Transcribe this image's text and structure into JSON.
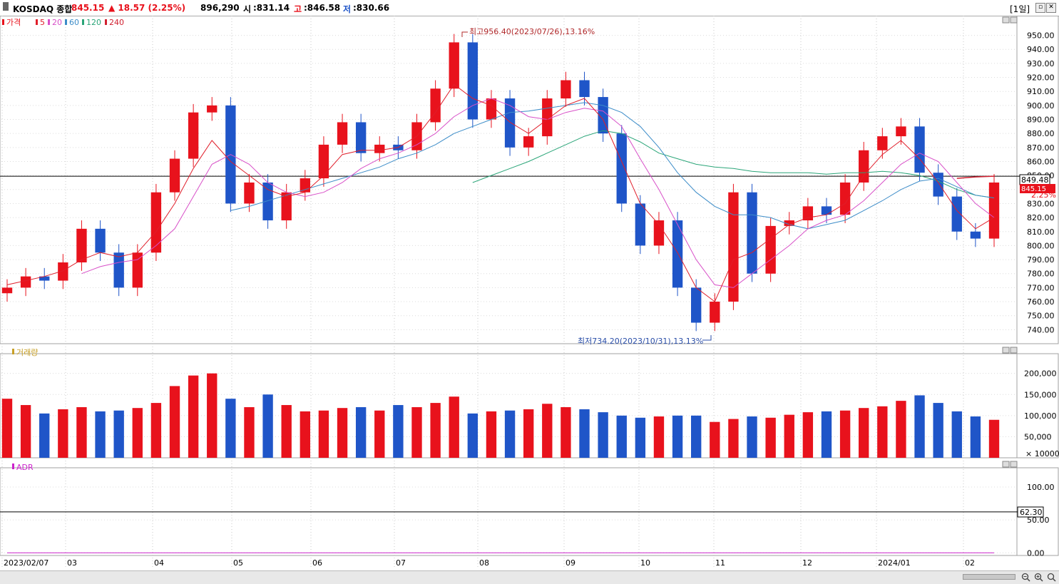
{
  "header": {
    "name": "KOSDAQ 종합",
    "price": "845.15",
    "change": "▲ 18.57 (2.25%)",
    "volume": "896,290",
    "open_label": "시",
    "open": ":831.14",
    "high_label": "고",
    "high": ":846.58",
    "low_label": "저",
    "low": ":830.66",
    "period": "[1일]"
  },
  "colors": {
    "up": "#e8121c",
    "down": "#1f55c8",
    "ma5": "#e01e2a",
    "ma20": "#d850c8",
    "ma60": "#3c8cc8",
    "ma120": "#2aa578",
    "ma240": "#d02030",
    "adr": "#cc22cc",
    "grid": "#dcdcdc"
  },
  "legend_price": [
    "가격",
    "5",
    "20",
    "60",
    "120",
    "240"
  ],
  "legend_volume": "거래량",
  "legend_adr": "ADR",
  "annotations": {
    "high": "최고956.40(2023/07/26),13.16%",
    "low": "최저734.20(2023/10/31),13.13%"
  },
  "reference_price_label": "849.48",
  "current_price_label": "845.15",
  "change_pct_label": "2.25%",
  "adr_reference_label": "62.30",
  "x_labels": [
    "2023/02/07",
    "03",
    "04",
    "05",
    "06",
    "07",
    "08",
    "09",
    "10",
    "11",
    "12",
    "2024/01",
    "02"
  ],
  "chart_data": [
    {
      "type": "candlestick",
      "title": "가격",
      "ylim": [
        730,
        962
      ],
      "yticks": [
        740,
        750,
        760,
        770,
        780,
        790,
        800,
        810,
        820,
        830,
        840,
        850,
        860,
        870,
        880,
        890,
        900,
        910,
        920,
        930,
        940,
        950
      ],
      "reference_line": 849.48,
      "series": [
        {
          "name": "5"
        },
        {
          "name": "20"
        },
        {
          "name": "60"
        },
        {
          "name": "120"
        },
        {
          "name": "240"
        }
      ],
      "x": [
        "2023/02/07",
        "2023/02/14",
        "2023/02/21",
        "2023/02/28",
        "2023/03/07",
        "2023/03/14",
        "2023/03/21",
        "2023/03/28",
        "2023/04/04",
        "2023/04/11",
        "2023/04/18",
        "2023/04/25",
        "2023/05/02",
        "2023/05/09",
        "2023/05/16",
        "2023/05/23",
        "2023/05/30",
        "2023/06/07",
        "2023/06/14",
        "2023/06/21",
        "2023/06/28",
        "2023/07/05",
        "2023/07/12",
        "2023/07/19",
        "2023/07/26",
        "2023/08/02",
        "2023/08/09",
        "2023/08/16",
        "2023/08/23",
        "2023/08/30",
        "2023/09/06",
        "2023/09/13",
        "2023/09/20",
        "2023/10/04",
        "2023/10/11",
        "2023/10/18",
        "2023/10/25",
        "2023/10/31",
        "2023/11/07",
        "2023/11/14",
        "2023/11/21",
        "2023/11/28",
        "2023/12/05",
        "2023/12/12",
        "2023/12/19",
        "2023/12/26",
        "2024/01/03",
        "2024/01/10",
        "2024/01/17",
        "2024/01/24",
        "2024/01/31",
        "2024/02/07",
        "2024/02/14",
        "2024/02/21"
      ],
      "close": [
        770,
        778,
        775,
        788,
        812,
        795,
        770,
        795,
        838,
        862,
        895,
        900,
        830,
        845,
        818,
        838,
        848,
        872,
        888,
        866,
        872,
        868,
        888,
        912,
        945,
        890,
        905,
        870,
        878,
        905,
        918,
        906,
        880,
        830,
        800,
        818,
        770,
        745,
        760,
        838,
        780,
        814,
        818,
        828,
        822,
        845,
        868,
        878,
        885,
        852,
        835,
        810,
        805,
        845
      ],
      "ma5": [
        772,
        775,
        778,
        782,
        790,
        795,
        792,
        795,
        810,
        830,
        855,
        875,
        860,
        850,
        840,
        835,
        838,
        850,
        865,
        868,
        868,
        870,
        878,
        895,
        915,
        905,
        900,
        888,
        880,
        890,
        900,
        905,
        890,
        860,
        830,
        815,
        795,
        770,
        760,
        790,
        795,
        805,
        815,
        820,
        822,
        830,
        850,
        865,
        875,
        862,
        845,
        825,
        812,
        820
      ],
      "ma20": [
        null,
        null,
        null,
        null,
        780,
        785,
        788,
        790,
        800,
        812,
        835,
        858,
        865,
        858,
        845,
        838,
        835,
        838,
        845,
        855,
        862,
        866,
        872,
        880,
        892,
        900,
        905,
        900,
        892,
        890,
        895,
        898,
        896,
        885,
        862,
        840,
        815,
        790,
        772,
        770,
        780,
        790,
        800,
        812,
        818,
        822,
        832,
        845,
        858,
        866,
        860,
        845,
        830,
        820
      ],
      "ma60": [
        null,
        null,
        null,
        null,
        null,
        null,
        null,
        null,
        null,
        null,
        null,
        null,
        825,
        828,
        832,
        836,
        840,
        844,
        848,
        852,
        856,
        862,
        866,
        872,
        880,
        885,
        890,
        895,
        896,
        898,
        900,
        902,
        900,
        895,
        885,
        870,
        852,
        838,
        828,
        822,
        822,
        820,
        815,
        812,
        815,
        818,
        825,
        832,
        840,
        846,
        848,
        842,
        836,
        834
      ],
      "ma120": [
        null,
        null,
        null,
        null,
        null,
        null,
        null,
        null,
        null,
        null,
        null,
        null,
        null,
        null,
        null,
        null,
        null,
        null,
        null,
        null,
        null,
        null,
        null,
        null,
        null,
        845,
        850,
        855,
        860,
        866,
        872,
        878,
        882,
        880,
        874,
        866,
        862,
        858,
        856,
        855,
        853,
        852,
        852,
        852,
        851,
        852,
        852,
        853,
        852,
        850,
        846,
        840,
        836,
        834
      ],
      "ma240": [
        null,
        null,
        null,
        null,
        null,
        null,
        null,
        null,
        null,
        null,
        null,
        null,
        null,
        null,
        null,
        null,
        null,
        null,
        null,
        null,
        null,
        null,
        null,
        null,
        null,
        null,
        null,
        null,
        null,
        null,
        null,
        null,
        null,
        null,
        null,
        null,
        null,
        null,
        null,
        null,
        null,
        null,
        null,
        null,
        null,
        null,
        null,
        null,
        null,
        null,
        null,
        848,
        849,
        849.5
      ]
    },
    {
      "type": "bar",
      "title": "거래량",
      "unit": "× 10000",
      "ylim": [
        0,
        240000
      ],
      "yticks": [
        50000,
        100000,
        150000,
        200000
      ],
      "x": [
        "2023/02/07",
        "2023/02/14",
        "2023/02/21",
        "2023/02/28",
        "2023/03/07",
        "2023/03/14",
        "2023/03/21",
        "2023/03/28",
        "2023/04/04",
        "2023/04/11",
        "2023/04/18",
        "2023/04/25",
        "2023/05/02",
        "2023/05/09",
        "2023/05/16",
        "2023/05/23",
        "2023/05/30",
        "2023/06/07",
        "2023/06/14",
        "2023/06/21",
        "2023/06/28",
        "2023/07/05",
        "2023/07/12",
        "2023/07/19",
        "2023/07/26",
        "2023/08/02",
        "2023/08/09",
        "2023/08/16",
        "2023/08/23",
        "2023/08/30",
        "2023/09/06",
        "2023/09/13",
        "2023/09/20",
        "2023/10/04",
        "2023/10/11",
        "2023/10/18",
        "2023/10/25",
        "2023/10/31",
        "2023/11/07",
        "2023/11/14",
        "2023/11/21",
        "2023/11/28",
        "2023/12/05",
        "2023/12/12",
        "2023/12/19",
        "2023/12/26",
        "2024/01/03",
        "2024/01/10",
        "2024/01/17",
        "2024/01/24",
        "2024/01/31",
        "2024/02/07",
        "2024/02/14",
        "2024/02/21"
      ],
      "values": [
        140000,
        125000,
        105000,
        115000,
        120000,
        110000,
        112000,
        118000,
        130000,
        170000,
        195000,
        200000,
        140000,
        120000,
        150000,
        125000,
        110000,
        112000,
        118000,
        120000,
        112000,
        125000,
        120000,
        130000,
        145000,
        105000,
        110000,
        112000,
        115000,
        128000,
        120000,
        115000,
        108000,
        100000,
        95000,
        98000,
        100000,
        100000,
        85000,
        92000,
        98000,
        95000,
        102000,
        108000,
        110000,
        112000,
        118000,
        122000,
        135000,
        148000,
        130000,
        110000,
        98000,
        90000
      ]
    },
    {
      "type": "line",
      "title": "ADR",
      "ylim": [
        -4,
        125
      ],
      "yticks": [
        0,
        50,
        100
      ],
      "reference_line": 62.3,
      "x": [
        "2023/02/07",
        "2023/02/14",
        "2023/02/21",
        "2023/02/28",
        "2023/03/07",
        "2023/03/14",
        "2023/03/21",
        "2023/03/28",
        "2023/04/04",
        "2023/04/11",
        "2023/04/18",
        "2023/04/25",
        "2023/05/02",
        "2023/05/09",
        "2023/05/16",
        "2023/05/23",
        "2023/05/30",
        "2023/06/07",
        "2023/06/14",
        "2023/06/21",
        "2023/06/28",
        "2023/07/05",
        "2023/07/12",
        "2023/07/19",
        "2023/07/26",
        "2023/08/02",
        "2023/08/09",
        "2023/08/16",
        "2023/08/23",
        "2023/08/30",
        "2023/09/06",
        "2023/09/13",
        "2023/09/20",
        "2023/10/04",
        "2023/10/11",
        "2023/10/18",
        "2023/10/25",
        "2023/10/31",
        "2023/11/07",
        "2023/11/14",
        "2023/11/21",
        "2023/11/28",
        "2023/12/05",
        "2023/12/12",
        "2023/12/19",
        "2023/12/26",
        "2024/01/03",
        "2024/01/10",
        "2024/01/17",
        "2024/01/24",
        "2024/01/31",
        "2024/02/07",
        "2024/02/14",
        "2024/02/21"
      ],
      "values": [
        0,
        0,
        0,
        0,
        0,
        0,
        0,
        0,
        0,
        0,
        0,
        0,
        0,
        0,
        0,
        0,
        0,
        0,
        0,
        0,
        0,
        0,
        0,
        0,
        0,
        0,
        0,
        0,
        0,
        0,
        0,
        0,
        0,
        0,
        0,
        0,
        0,
        0,
        0,
        0,
        0,
        0,
        0,
        0,
        0,
        0,
        0,
        0,
        0,
        0,
        0,
        0,
        0,
        0
      ]
    }
  ]
}
